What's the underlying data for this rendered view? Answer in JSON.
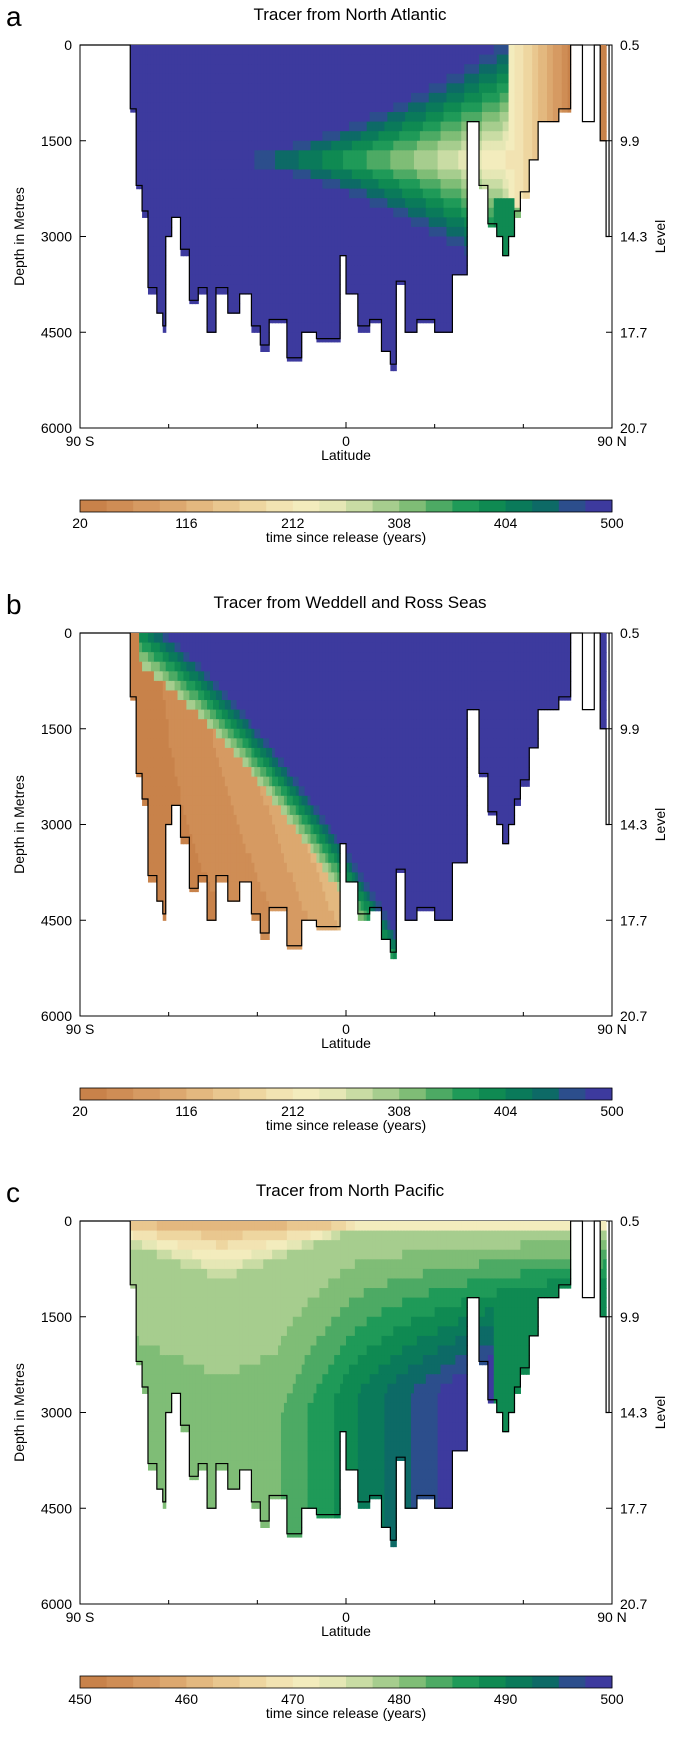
{
  "palettes": {
    "warm_to_blue": [
      "#c8824a",
      "#cf8d55",
      "#d69a62",
      "#dca86f",
      "#e3b87f",
      "#e9c78f",
      "#eed6a0",
      "#f2e3b2",
      "#f3ecbd",
      "#e5e7b5",
      "#c9dca4",
      "#a6cd8e",
      "#7fbd76",
      "#4daa64",
      "#1f9a58",
      "#0f8a52",
      "#0a7a5a",
      "#0d6a66",
      "#2c4e8c",
      "#3d3a9e"
    ],
    "land_white": "#ffffff",
    "outline": "#000000"
  },
  "panels": [
    {
      "letter": "a",
      "chart_data": {
        "type": "heatmap",
        "title": "Tracer from North Atlantic",
        "xlabel": "Latitude",
        "ylabel": "Depth in Metres",
        "ylabel_right": "Level",
        "x_ticks": [
          "90 S",
          "0",
          "90 N"
        ],
        "y_ticks": [
          "0",
          "1500",
          "3000",
          "4500",
          "6000"
        ],
        "y_right_ticks": [
          "0.5",
          "9.9",
          "14.3",
          "17.7",
          "20.7"
        ],
        "colorbar_ticks": [
          "20",
          "116",
          "212",
          "308",
          "404",
          "500"
        ],
        "colorbar_label": "time since release (years)",
        "colorbar_range": [
          20,
          500
        ],
        "field": "north_atlantic"
      }
    },
    {
      "letter": "b",
      "chart_data": {
        "type": "heatmap",
        "title": "Tracer from Weddell and Ross Seas",
        "xlabel": "Latitude",
        "ylabel": "Depth in Metres",
        "ylabel_right": "Level",
        "x_ticks": [
          "90 S",
          "0",
          "90 N"
        ],
        "y_ticks": [
          "0",
          "1500",
          "3000",
          "4500",
          "6000"
        ],
        "y_right_ticks": [
          "0.5",
          "9.9",
          "14.3",
          "17.7",
          "20.7"
        ],
        "colorbar_ticks": [
          "20",
          "116",
          "212",
          "308",
          "404",
          "500"
        ],
        "colorbar_label": "time since release (years)",
        "colorbar_range": [
          20,
          500
        ],
        "field": "southern"
      }
    },
    {
      "letter": "c",
      "chart_data": {
        "type": "heatmap",
        "title": "Tracer from North Pacific",
        "xlabel": "Latitude",
        "ylabel": "Depth in Metres",
        "ylabel_right": "Level",
        "x_ticks": [
          "90 S",
          "0",
          "90 N"
        ],
        "y_ticks": [
          "0",
          "1500",
          "3000",
          "4500",
          "6000"
        ],
        "y_right_ticks": [
          "0.5",
          "9.9",
          "14.3",
          "17.7",
          "20.7"
        ],
        "colorbar_ticks": [
          "450",
          "460",
          "470",
          "480",
          "490",
          "500"
        ],
        "colorbar_label": "time since release (years)",
        "colorbar_range": [
          450,
          500
        ],
        "field": "north_pacific"
      }
    }
  ]
}
